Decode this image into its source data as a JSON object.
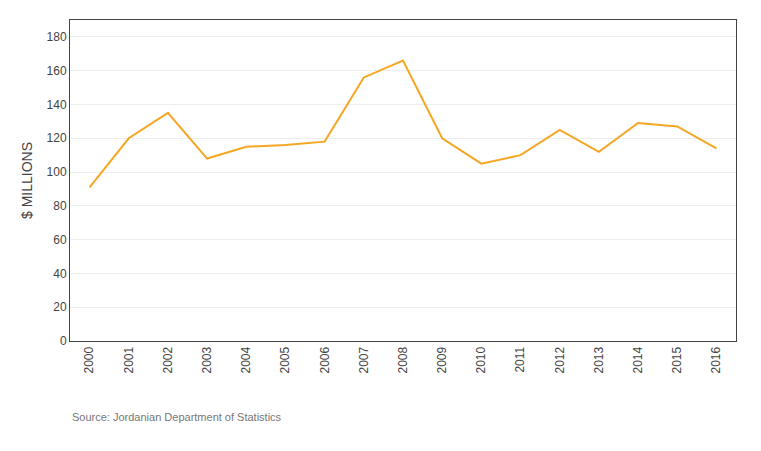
{
  "chart_data": {
    "type": "line",
    "x": [
      2000,
      2001,
      2002,
      2003,
      2004,
      2005,
      2006,
      2007,
      2008,
      2009,
      2010,
      2011,
      2012,
      2013,
      2014,
      2015,
      2016
    ],
    "values": [
      91,
      120,
      135,
      108,
      115,
      116,
      118,
      156,
      166,
      120,
      105,
      110,
      125,
      112,
      129,
      127,
      114
    ],
    "color": "#F5A623",
    "y_label": "$ MILLIONS",
    "xlim": [
      1999.5,
      2016.5
    ],
    "xticks": [
      2000,
      2001,
      2002,
      2003,
      2004,
      2005,
      2006,
      2007,
      2008,
      2009,
      2010,
      2011,
      2012,
      2013,
      2014,
      2015,
      2016
    ],
    "ylim": [
      0,
      190
    ],
    "yticks": [
      0,
      20,
      40,
      60,
      80,
      100,
      120,
      140,
      160,
      180
    ],
    "grid": "y",
    "annotations": [
      "Source: Jordanian Department of Statistics"
    ]
  }
}
